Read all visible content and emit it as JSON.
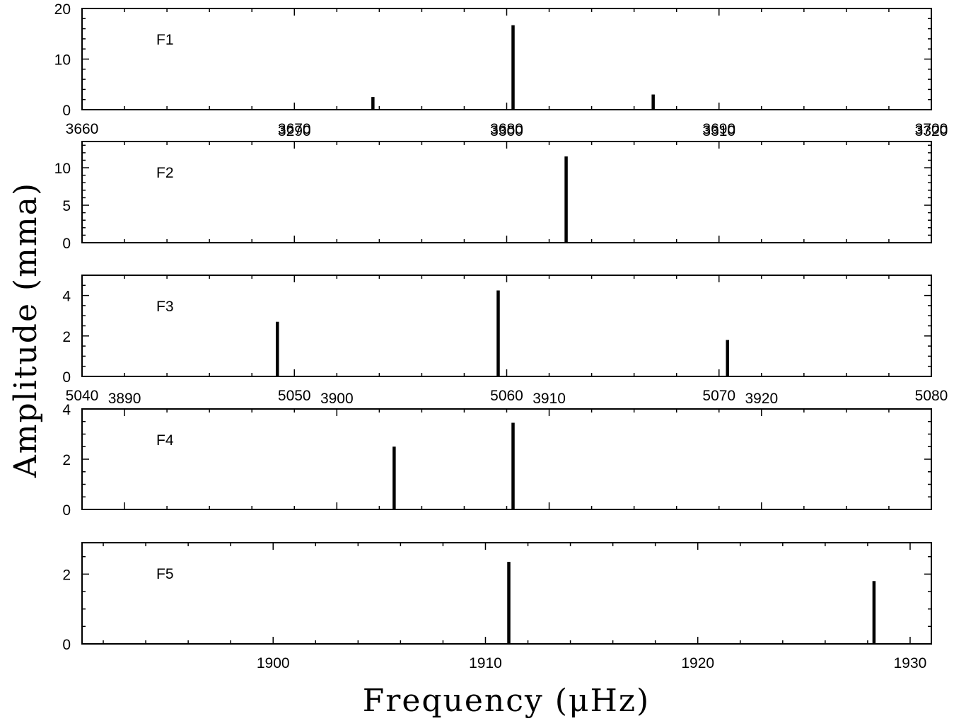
{
  "figure": {
    "ylabel": "Amplitude (mma)",
    "xlabel": "Frequency (μHz)"
  },
  "chart_data": [
    {
      "type": "bar",
      "label": "F1",
      "xlim": [
        3660,
        3700
      ],
      "ylim": [
        0,
        20
      ],
      "x_major_ticks": [
        3660,
        3670,
        3680,
        3690,
        3700
      ],
      "x_minor_step": 2,
      "y_major_ticks": [
        0,
        10,
        20
      ],
      "y_minor_step": 2,
      "points": [
        {
          "x": 3673.7,
          "y": 2.5
        },
        {
          "x": 3680.3,
          "y": 16.7
        },
        {
          "x": 3686.9,
          "y": 3.0
        }
      ]
    },
    {
      "type": "bar",
      "label": "F2",
      "xlim": [
        3280,
        3320
      ],
      "ylim": [
        0,
        13.5
      ],
      "x_major_ticks": [
        3290,
        3300,
        3310,
        3320
      ],
      "x_minor_step": 2,
      "y_major_ticks": [
        0,
        5,
        10
      ],
      "y_minor_step": 1,
      "points": [
        {
          "x": 3302.8,
          "y": 11.5
        }
      ]
    },
    {
      "type": "bar",
      "label": "F3",
      "xlim": [
        5040,
        5080
      ],
      "ylim": [
        0,
        5
      ],
      "x_major_ticks": [
        5040,
        5050,
        5060,
        5070,
        5080
      ],
      "x_minor_step": 2,
      "y_major_ticks": [
        0,
        2,
        4
      ],
      "y_minor_step": 0.5,
      "points": [
        {
          "x": 5049.2,
          "y": 2.7
        },
        {
          "x": 5059.6,
          "y": 4.25
        },
        {
          "x": 5070.4,
          "y": 1.8
        }
      ]
    },
    {
      "type": "bar",
      "label": "F4",
      "xlim": [
        3888,
        3928
      ],
      "ylim": [
        0,
        4
      ],
      "x_major_ticks": [
        3890,
        3900,
        3910,
        3920
      ],
      "x_minor_step": 2,
      "y_major_ticks": [
        0,
        2,
        4
      ],
      "y_minor_step": 0.5,
      "points": [
        {
          "x": 3902.7,
          "y": 2.5
        },
        {
          "x": 3908.3,
          "y": 3.45
        }
      ]
    },
    {
      "type": "bar",
      "label": "F5",
      "xlim": [
        1891,
        1931
      ],
      "ylim": [
        0,
        2.9
      ],
      "x_major_ticks": [
        1900,
        1910,
        1920,
        1930
      ],
      "x_minor_step": 2,
      "y_major_ticks": [
        0,
        2
      ],
      "y_minor_step": 0.5,
      "points": [
        {
          "x": 1911.1,
          "y": 2.35
        },
        {
          "x": 1928.3,
          "y": 1.8
        }
      ]
    }
  ]
}
